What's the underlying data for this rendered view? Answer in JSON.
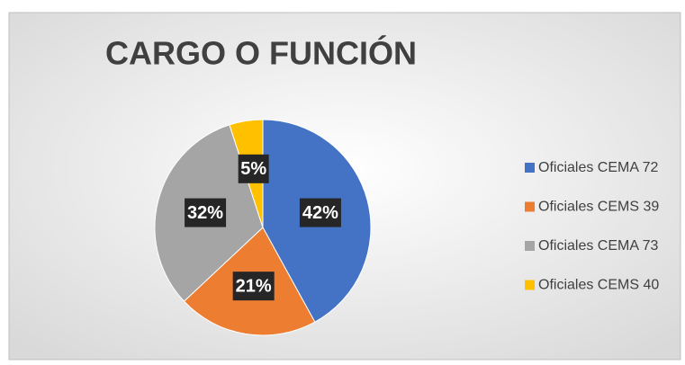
{
  "chart_data": {
    "type": "pie",
    "title": "CARGO O FUNCIÓN",
    "categories": [
      "Oficiales CEMA 72",
      "Oficiales CEMS 39",
      "Oficiales CEMA 73",
      "Oficiales CEMS 40"
    ],
    "values": [
      42,
      21,
      32,
      5
    ],
    "value_labels": [
      "42%",
      "21%",
      "32%",
      "5%"
    ],
    "colors": [
      "#4472c4",
      "#ed7d31",
      "#a5a5a5",
      "#ffc000"
    ],
    "legend": "right"
  }
}
